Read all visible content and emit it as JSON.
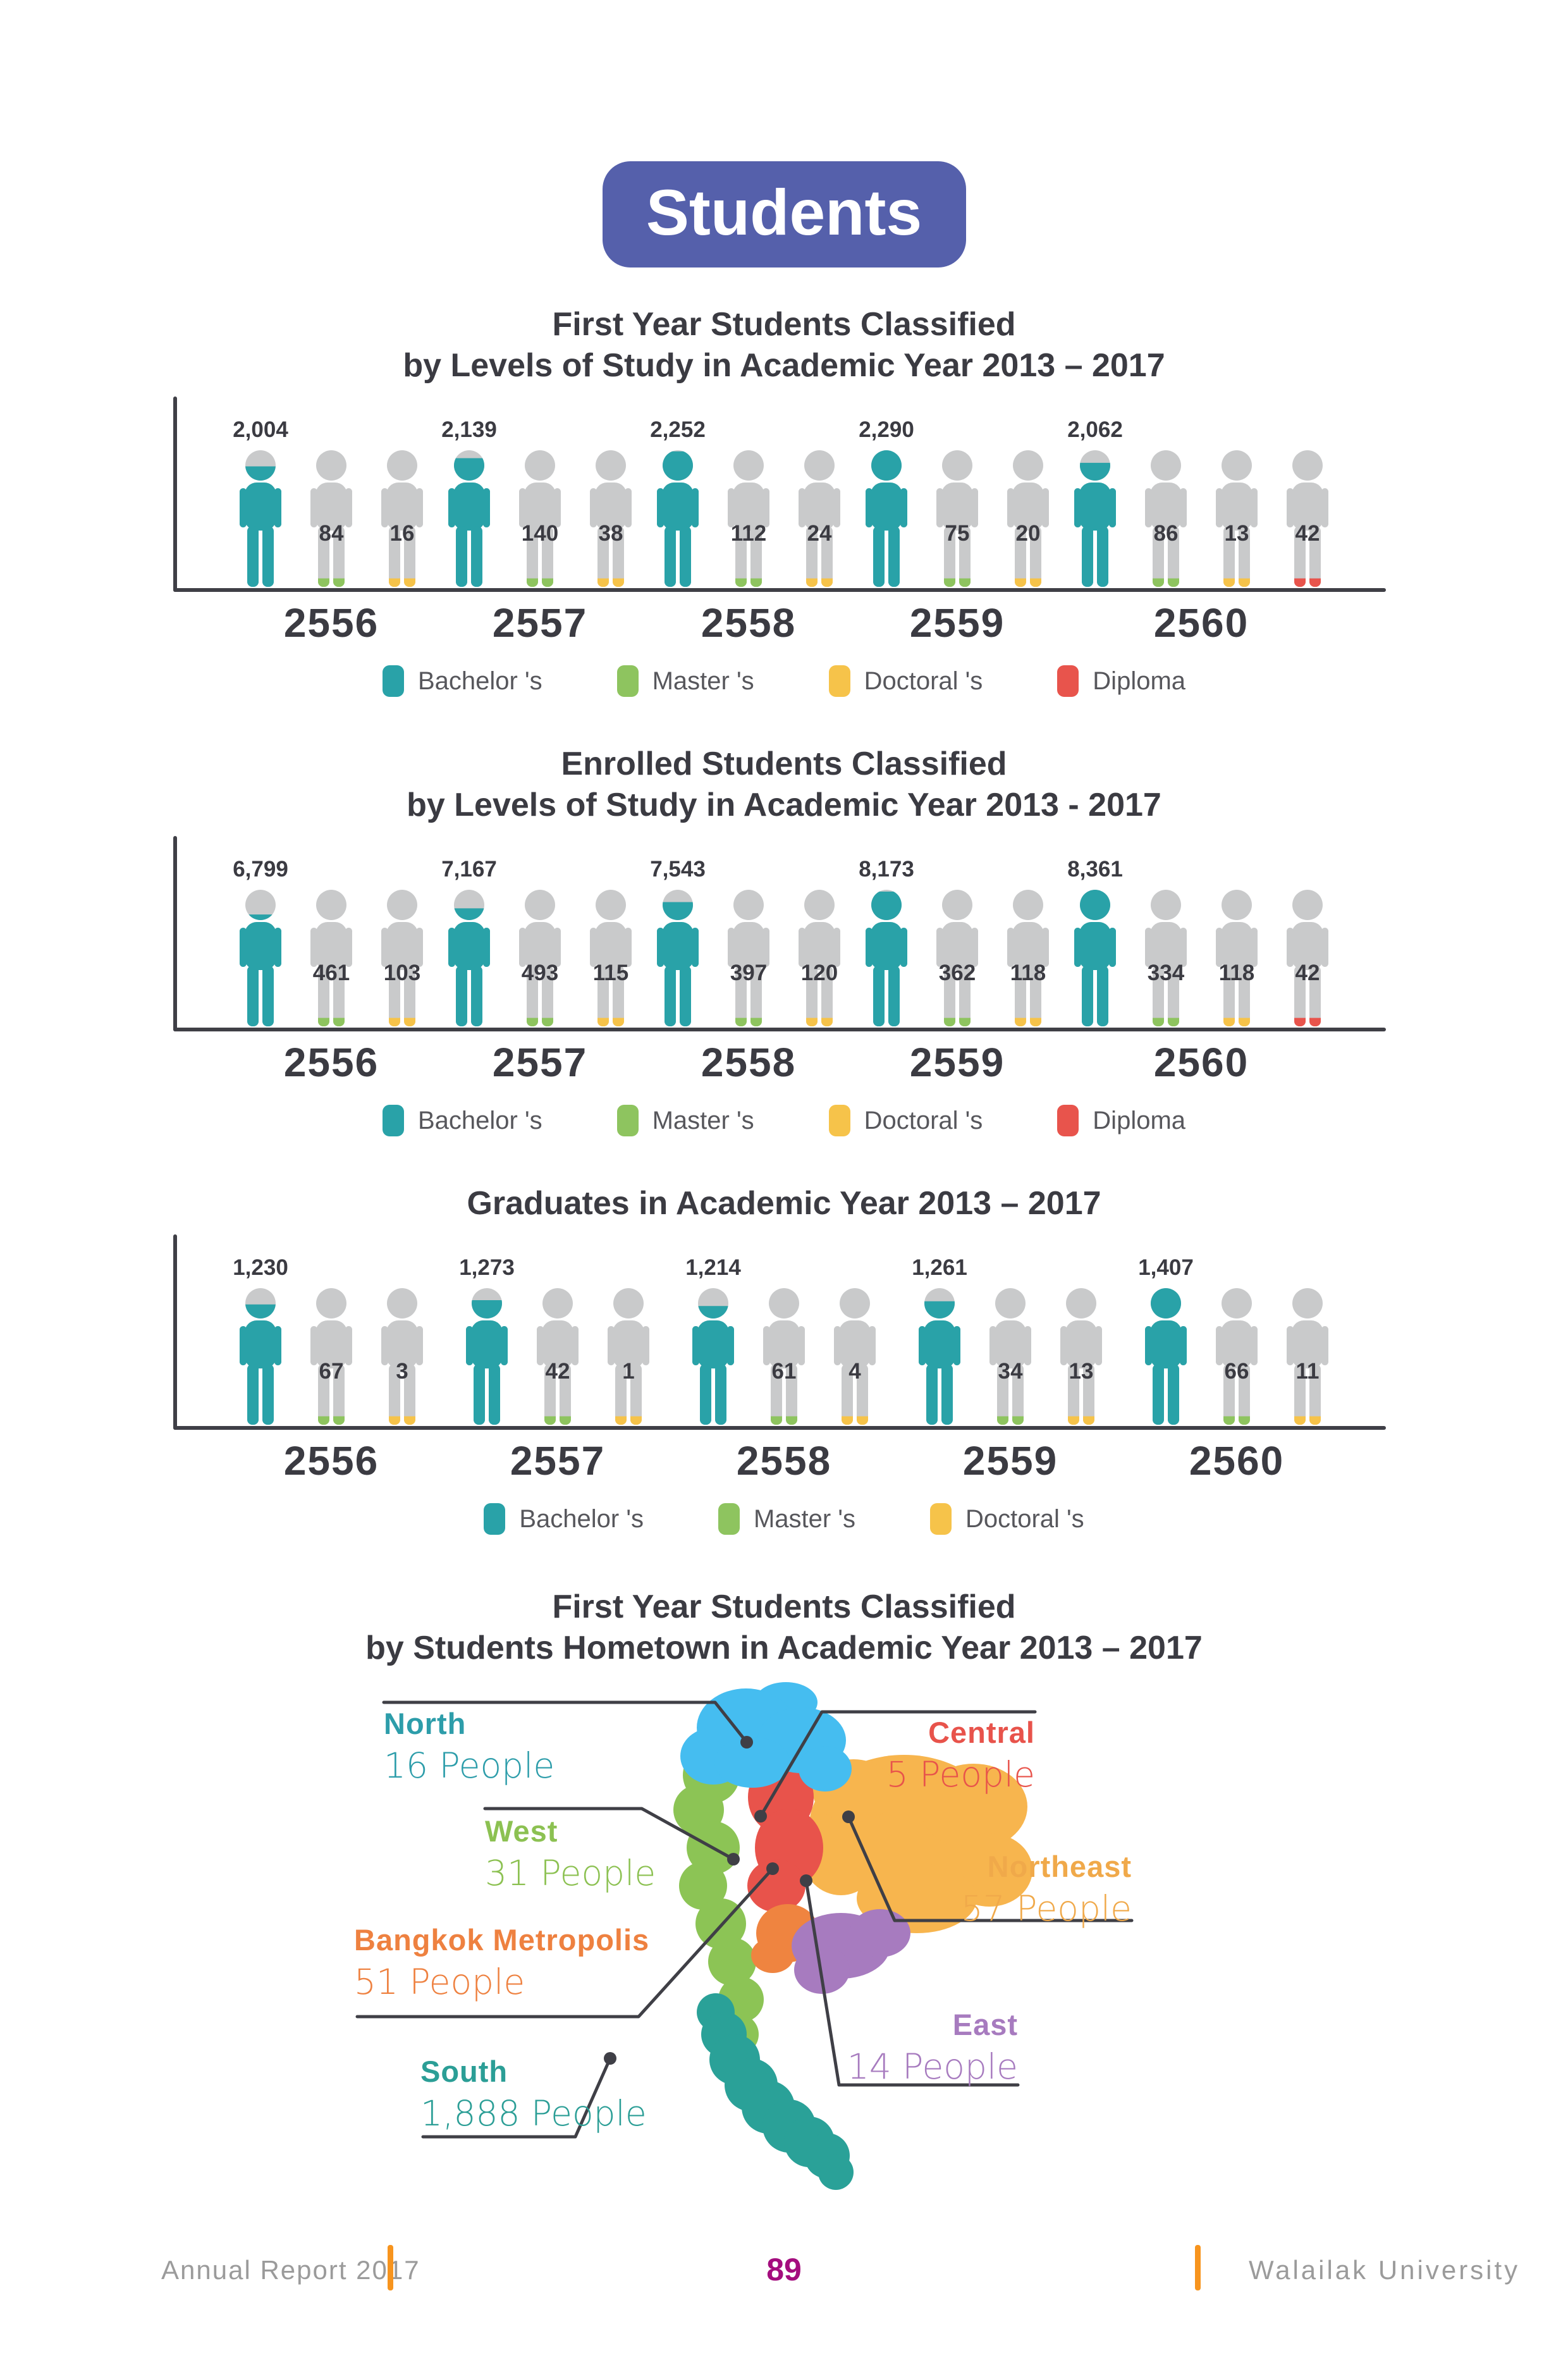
{
  "page": {
    "badge": "Students"
  },
  "colors": {
    "bachelor": "#29a2a8",
    "master": "#8ec45f",
    "doctoral": "#f6c34a",
    "diploma": "#e8544c",
    "person_gray": "#c9cacb",
    "badge_bg": "#5560ab",
    "title_text": "#3b3b42",
    "footer_accent": "#f7941e",
    "page_number": "#a40d7e"
  },
  "charts": [
    {
      "title_line1": "First Year Students Classified",
      "title_line2": "by Levels of Study in Academic Year 2013 – 2017",
      "groups": [
        {
          "year": "2556",
          "values": [
            {
              "label": "2,004",
              "value": 2004,
              "type": "bachelor"
            },
            {
              "label": "84",
              "value": 84,
              "type": "master"
            },
            {
              "label": "16",
              "value": 16,
              "type": "doctoral"
            }
          ]
        },
        {
          "year": "2557",
          "values": [
            {
              "label": "2,139",
              "value": 2139,
              "type": "bachelor"
            },
            {
              "label": "140",
              "value": 140,
              "type": "master"
            },
            {
              "label": "38",
              "value": 38,
              "type": "doctoral"
            }
          ]
        },
        {
          "year": "2558",
          "values": [
            {
              "label": "2,252",
              "value": 2252,
              "type": "bachelor"
            },
            {
              "label": "112",
              "value": 112,
              "type": "master"
            },
            {
              "label": "24",
              "value": 24,
              "type": "doctoral"
            }
          ]
        },
        {
          "year": "2559",
          "values": [
            {
              "label": "2,290",
              "value": 2290,
              "type": "bachelor"
            },
            {
              "label": "75",
              "value": 75,
              "type": "master"
            },
            {
              "label": "20",
              "value": 20,
              "type": "doctoral"
            }
          ]
        },
        {
          "year": "2560",
          "values": [
            {
              "label": "2,062",
              "value": 2062,
              "type": "bachelor"
            },
            {
              "label": "86",
              "value": 86,
              "type": "master"
            },
            {
              "label": "13",
              "value": 13,
              "type": "doctoral"
            },
            {
              "label": "42",
              "value": 42,
              "type": "diploma"
            }
          ]
        }
      ],
      "legend": [
        {
          "label": "Bachelor 's",
          "type": "bachelor"
        },
        {
          "label": "Master 's",
          "type": "master"
        },
        {
          "label": "Doctoral 's",
          "type": "doctoral"
        },
        {
          "label": "Diploma",
          "type": "diploma"
        }
      ]
    },
    {
      "title_line1": "Enrolled Students Classified",
      "title_line2": "by Levels of Study in Academic Year 2013 - 2017",
      "groups": [
        {
          "year": "2556",
          "values": [
            {
              "label": "6,799",
              "value": 6799,
              "type": "bachelor"
            },
            {
              "label": "461",
              "value": 461,
              "type": "master"
            },
            {
              "label": "103",
              "value": 103,
              "type": "doctoral"
            }
          ]
        },
        {
          "year": "2557",
          "values": [
            {
              "label": "7,167",
              "value": 7167,
              "type": "bachelor"
            },
            {
              "label": "493",
              "value": 493,
              "type": "master"
            },
            {
              "label": "115",
              "value": 115,
              "type": "doctoral"
            }
          ]
        },
        {
          "year": "2558",
          "values": [
            {
              "label": "7,543",
              "value": 7543,
              "type": "bachelor"
            },
            {
              "label": "397",
              "value": 397,
              "type": "master"
            },
            {
              "label": "120",
              "value": 120,
              "type": "doctoral"
            }
          ]
        },
        {
          "year": "2559",
          "values": [
            {
              "label": "8,173",
              "value": 8173,
              "type": "bachelor"
            },
            {
              "label": "362",
              "value": 362,
              "type": "master"
            },
            {
              "label": "118",
              "value": 118,
              "type": "doctoral"
            }
          ]
        },
        {
          "year": "2560",
          "values": [
            {
              "label": "8,361",
              "value": 8361,
              "type": "bachelor"
            },
            {
              "label": "334",
              "value": 334,
              "type": "master"
            },
            {
              "label": "118",
              "value": 118,
              "type": "doctoral"
            },
            {
              "label": "42",
              "value": 42,
              "type": "diploma"
            }
          ]
        }
      ],
      "legend": [
        {
          "label": "Bachelor 's",
          "type": "bachelor"
        },
        {
          "label": "Master 's",
          "type": "master"
        },
        {
          "label": "Doctoral 's",
          "type": "doctoral"
        },
        {
          "label": "Diploma",
          "type": "diploma"
        }
      ]
    },
    {
      "title_line1": "Graduates in Academic Year 2013 – 2017",
      "title_line2": "",
      "groups": [
        {
          "year": "2556",
          "values": [
            {
              "label": "1,230",
              "value": 1230,
              "type": "bachelor"
            },
            {
              "label": "67",
              "value": 67,
              "type": "master"
            },
            {
              "label": "3",
              "value": 3,
              "type": "doctoral"
            }
          ]
        },
        {
          "year": "2557",
          "values": [
            {
              "label": "1,273",
              "value": 1273,
              "type": "bachelor"
            },
            {
              "label": "42",
              "value": 42,
              "type": "master"
            },
            {
              "label": "1",
              "value": 1,
              "type": "doctoral"
            }
          ]
        },
        {
          "year": "2558",
          "values": [
            {
              "label": "1,214",
              "value": 1214,
              "type": "bachelor"
            },
            {
              "label": "61",
              "value": 61,
              "type": "master"
            },
            {
              "label": "4",
              "value": 4,
              "type": "doctoral"
            }
          ]
        },
        {
          "year": "2559",
          "values": [
            {
              "label": "1,261",
              "value": 1261,
              "type": "bachelor"
            },
            {
              "label": "34",
              "value": 34,
              "type": "master"
            },
            {
              "label": "13",
              "value": 13,
              "type": "doctoral"
            }
          ]
        },
        {
          "year": "2560",
          "values": [
            {
              "label": "1,407",
              "value": 1407,
              "type": "bachelor"
            },
            {
              "label": "66",
              "value": 66,
              "type": "master"
            },
            {
              "label": "11",
              "value": 11,
              "type": "doctoral"
            }
          ]
        }
      ],
      "legend": [
        {
          "label": "Bachelor 's",
          "type": "bachelor"
        },
        {
          "label": "Master 's",
          "type": "master"
        },
        {
          "label": "Doctoral 's",
          "type": "doctoral"
        }
      ]
    }
  ],
  "map_section": {
    "title_line1": "First Year Students Classified",
    "title_line2": "by Students Hometown in Academic Year 2013 – 2017",
    "regions": [
      {
        "name": "North",
        "people": "16 People",
        "color": "#45bdf0",
        "label_color": "#2d9daa"
      },
      {
        "name": "Central",
        "people": "5 People",
        "color": "#e8534b",
        "label_color": "#e8534b"
      },
      {
        "name": "West",
        "people": "31 People",
        "color": "#8cc455",
        "label_color": "#8cc152"
      },
      {
        "name": "Northeast",
        "people": "57 People",
        "color": "#f7b54e",
        "label_color": "#f0a94a"
      },
      {
        "name": "Bangkok  Metropolis",
        "people": "51 People",
        "color": "#ef8440",
        "label_color": "#ee8140"
      },
      {
        "name": "East",
        "people": "14 People",
        "color": "#a77bbf",
        "label_color": "#a77bbf"
      },
      {
        "name": "South",
        "people": "1,888 People",
        "color": "#2aa198",
        "label_color": "#2b9e96"
      }
    ]
  },
  "footer": {
    "left": "Annual Report 2017",
    "page": "89",
    "right": "Walailak  University"
  }
}
